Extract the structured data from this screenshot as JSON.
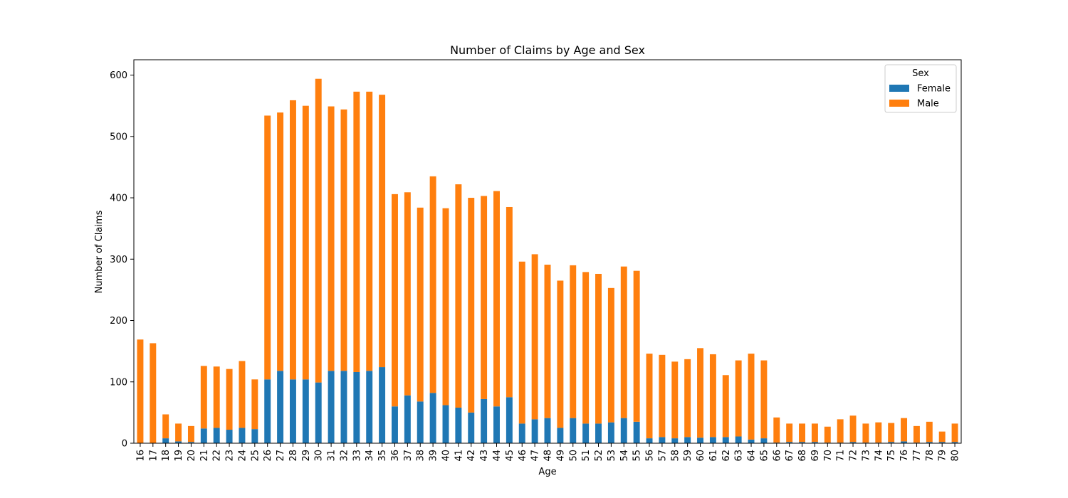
{
  "chart_data": {
    "type": "bar",
    "stacked": true,
    "title": "Number of Claims by Age and Sex",
    "xlabel": "Age",
    "ylabel": "Number of Claims",
    "ylim": [
      0,
      625
    ],
    "yticks": [
      0,
      100,
      200,
      300,
      400,
      500,
      600
    ],
    "legend": {
      "title": "Sex",
      "placement": "top-right"
    },
    "categories": [
      "16",
      "17",
      "18",
      "19",
      "20",
      "21",
      "22",
      "23",
      "24",
      "25",
      "26",
      "27",
      "28",
      "29",
      "30",
      "31",
      "32",
      "33",
      "34",
      "35",
      "36",
      "37",
      "38",
      "39",
      "40",
      "41",
      "42",
      "43",
      "44",
      "45",
      "46",
      "47",
      "48",
      "49",
      "50",
      "51",
      "52",
      "53",
      "54",
      "55",
      "56",
      "57",
      "58",
      "59",
      "60",
      "61",
      "62",
      "63",
      "64",
      "65",
      "66",
      "67",
      "68",
      "69",
      "70",
      "71",
      "72",
      "73",
      "74",
      "75",
      "76",
      "77",
      "78",
      "79",
      "80"
    ],
    "series": [
      {
        "name": "Female",
        "color": "#1f77b4",
        "values": [
          0,
          0,
          8,
          3,
          2,
          24,
          25,
          22,
          25,
          23,
          104,
          118,
          104,
          104,
          99,
          118,
          118,
          116,
          118,
          124,
          60,
          78,
          68,
          82,
          62,
          58,
          50,
          72,
          60,
          75,
          32,
          39,
          41,
          25,
          41,
          32,
          32,
          34,
          41,
          35,
          8,
          10,
          8,
          10,
          9,
          10,
          10,
          11,
          6,
          8,
          1,
          2,
          2,
          2,
          1,
          1,
          2,
          1,
          1,
          2,
          3,
          1,
          2,
          2,
          2
        ]
      },
      {
        "name": "Male",
        "color": "#ff7f0e",
        "values": [
          169,
          163,
          39,
          29,
          26,
          102,
          100,
          99,
          109,
          81,
          430,
          421,
          455,
          446,
          495,
          431,
          426,
          457,
          455,
          444,
          346,
          331,
          316,
          353,
          321,
          364,
          350,
          331,
          351,
          310,
          264,
          269,
          250,
          240,
          249,
          247,
          244,
          219,
          247,
          246,
          138,
          134,
          125,
          127,
          146,
          135,
          101,
          124,
          140,
          127,
          41,
          30,
          30,
          30,
          26,
          38,
          43,
          31,
          33,
          31,
          38,
          27,
          33,
          17,
          30
        ]
      }
    ]
  }
}
